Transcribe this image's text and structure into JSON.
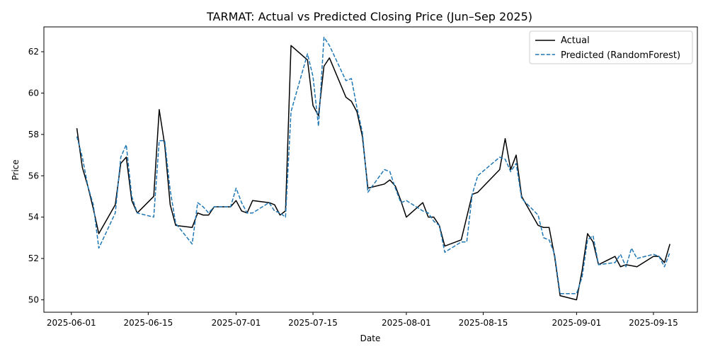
{
  "chart_data": {
    "type": "line",
    "title": "TARMAT: Actual vs Predicted Closing Price (Jun–Sep 2025)",
    "xlabel": "Date",
    "ylabel": "Price",
    "ylim": [
      49.4,
      63.2
    ],
    "xlim": [
      "2025-05-27",
      "2025-09-23"
    ],
    "y_ticks": [
      50,
      52,
      54,
      56,
      58,
      60,
      62
    ],
    "x_ticks": [
      "2025-06-01",
      "2025-06-15",
      "2025-07-01",
      "2025-07-15",
      "2025-08-01",
      "2025-08-15",
      "2025-09-01",
      "2025-09-15"
    ],
    "grid": false,
    "legend_position": "top-right",
    "series": [
      {
        "name": "Actual",
        "color": "#000000",
        "style": "solid",
        "points": [
          [
            "2025-06-02",
            58.3
          ],
          [
            "2025-06-03",
            56.4
          ],
          [
            "2025-06-04",
            55.5
          ],
          [
            "2025-06-05",
            54.4
          ],
          [
            "2025-06-06",
            53.2
          ],
          [
            "2025-06-09",
            54.6
          ],
          [
            "2025-06-10",
            56.6
          ],
          [
            "2025-06-11",
            56.9
          ],
          [
            "2025-06-12",
            54.8
          ],
          [
            "2025-06-13",
            54.2
          ],
          [
            "2025-06-16",
            55.0
          ],
          [
            "2025-06-17",
            59.2
          ],
          [
            "2025-06-18",
            57.5
          ],
          [
            "2025-06-19",
            54.6
          ],
          [
            "2025-06-20",
            53.6
          ],
          [
            "2025-06-23",
            53.5
          ],
          [
            "2025-06-24",
            54.2
          ],
          [
            "2025-06-25",
            54.1
          ],
          [
            "2025-06-26",
            54.1
          ],
          [
            "2025-06-27",
            54.5
          ],
          [
            "2025-06-30",
            54.5
          ],
          [
            "2025-07-01",
            54.8
          ],
          [
            "2025-07-02",
            54.3
          ],
          [
            "2025-07-03",
            54.2
          ],
          [
            "2025-07-04",
            54.8
          ],
          [
            "2025-07-07",
            54.7
          ],
          [
            "2025-07-08",
            54.6
          ],
          [
            "2025-07-09",
            54.1
          ],
          [
            "2025-07-10",
            54.3
          ],
          [
            "2025-07-11",
            62.3
          ],
          [
            "2025-07-14",
            61.6
          ],
          [
            "2025-07-15",
            59.4
          ],
          [
            "2025-07-16",
            58.9
          ],
          [
            "2025-07-17",
            61.3
          ],
          [
            "2025-07-18",
            61.7
          ],
          [
            "2025-07-21",
            59.8
          ],
          [
            "2025-07-22",
            59.6
          ],
          [
            "2025-07-23",
            59.1
          ],
          [
            "2025-07-24",
            57.9
          ],
          [
            "2025-07-25",
            55.4
          ],
          [
            "2025-07-28",
            55.6
          ],
          [
            "2025-07-29",
            55.8
          ],
          [
            "2025-07-30",
            55.5
          ],
          [
            "2025-07-31",
            54.8
          ],
          [
            "2025-08-01",
            54.0
          ],
          [
            "2025-08-04",
            54.7
          ],
          [
            "2025-08-05",
            54.0
          ],
          [
            "2025-08-06",
            54.0
          ],
          [
            "2025-08-07",
            53.6
          ],
          [
            "2025-08-08",
            52.6
          ],
          [
            "2025-08-11",
            52.9
          ],
          [
            "2025-08-12",
            54.0
          ],
          [
            "2025-08-13",
            55.1
          ],
          [
            "2025-08-14",
            55.2
          ],
          [
            "2025-08-18",
            56.3
          ],
          [
            "2025-08-19",
            57.8
          ],
          [
            "2025-08-20",
            56.3
          ],
          [
            "2025-08-21",
            57.0
          ],
          [
            "2025-08-22",
            55.0
          ],
          [
            "2025-08-25",
            53.6
          ],
          [
            "2025-08-26",
            53.5
          ],
          [
            "2025-08-27",
            53.5
          ],
          [
            "2025-08-28",
            52.1
          ],
          [
            "2025-08-29",
            50.2
          ],
          [
            "2025-09-01",
            50.0
          ],
          [
            "2025-09-02",
            51.4
          ],
          [
            "2025-09-03",
            53.2
          ],
          [
            "2025-09-04",
            52.8
          ],
          [
            "2025-09-05",
            51.7
          ],
          [
            "2025-09-08",
            52.1
          ],
          [
            "2025-09-09",
            51.6
          ],
          [
            "2025-09-10",
            51.7
          ],
          [
            "2025-09-12",
            51.6
          ],
          [
            "2025-09-15",
            52.1
          ],
          [
            "2025-09-16",
            52.1
          ],
          [
            "2025-09-17",
            51.8
          ],
          [
            "2025-09-18",
            52.7
          ]
        ]
      },
      {
        "name": "Predicted (RandomForest)",
        "color": "#1f77b4",
        "style": "dashed",
        "points": [
          [
            "2025-06-02",
            57.9
          ],
          [
            "2025-06-03",
            56.9
          ],
          [
            "2025-06-04",
            55.5
          ],
          [
            "2025-06-05",
            54.6
          ],
          [
            "2025-06-06",
            52.5
          ],
          [
            "2025-06-09",
            54.2
          ],
          [
            "2025-06-10",
            56.9
          ],
          [
            "2025-06-11",
            57.5
          ],
          [
            "2025-06-12",
            55.0
          ],
          [
            "2025-06-13",
            54.2
          ],
          [
            "2025-06-16",
            54.0
          ],
          [
            "2025-06-17",
            57.7
          ],
          [
            "2025-06-18",
            57.7
          ],
          [
            "2025-06-19",
            55.3
          ],
          [
            "2025-06-20",
            53.7
          ],
          [
            "2025-06-23",
            52.7
          ],
          [
            "2025-06-24",
            54.7
          ],
          [
            "2025-06-25",
            54.5
          ],
          [
            "2025-06-26",
            54.2
          ],
          [
            "2025-06-27",
            54.5
          ],
          [
            "2025-06-30",
            54.5
          ],
          [
            "2025-07-01",
            55.4
          ],
          [
            "2025-07-02",
            54.7
          ],
          [
            "2025-07-03",
            54.2
          ],
          [
            "2025-07-04",
            54.2
          ],
          [
            "2025-07-07",
            54.7
          ],
          [
            "2025-07-08",
            54.3
          ],
          [
            "2025-07-09",
            54.2
          ],
          [
            "2025-07-10",
            54.0
          ],
          [
            "2025-07-11",
            59.1
          ],
          [
            "2025-07-14",
            61.9
          ],
          [
            "2025-07-15",
            60.8
          ],
          [
            "2025-07-16",
            58.4
          ],
          [
            "2025-07-17",
            62.7
          ],
          [
            "2025-07-18",
            62.3
          ],
          [
            "2025-07-21",
            60.6
          ],
          [
            "2025-07-22",
            60.7
          ],
          [
            "2025-07-23",
            59.3
          ],
          [
            "2025-07-24",
            58.1
          ],
          [
            "2025-07-25",
            55.2
          ],
          [
            "2025-07-28",
            56.3
          ],
          [
            "2025-07-29",
            56.2
          ],
          [
            "2025-07-30",
            55.4
          ],
          [
            "2025-07-31",
            54.7
          ],
          [
            "2025-08-01",
            54.8
          ],
          [
            "2025-08-04",
            54.3
          ],
          [
            "2025-08-05",
            54.2
          ],
          [
            "2025-08-06",
            53.8
          ],
          [
            "2025-08-07",
            53.6
          ],
          [
            "2025-08-08",
            52.3
          ],
          [
            "2025-08-11",
            52.8
          ],
          [
            "2025-08-12",
            52.8
          ],
          [
            "2025-08-13",
            55.1
          ],
          [
            "2025-08-14",
            56.0
          ],
          [
            "2025-08-18",
            56.9
          ],
          [
            "2025-08-19",
            56.8
          ],
          [
            "2025-08-20",
            56.2
          ],
          [
            "2025-08-21",
            56.6
          ],
          [
            "2025-08-22",
            54.9
          ],
          [
            "2025-08-25",
            54.1
          ],
          [
            "2025-08-26",
            53.0
          ],
          [
            "2025-08-27",
            52.9
          ],
          [
            "2025-08-28",
            52.2
          ],
          [
            "2025-08-29",
            50.3
          ],
          [
            "2025-09-01",
            50.3
          ],
          [
            "2025-09-02",
            51.1
          ],
          [
            "2025-09-03",
            52.9
          ],
          [
            "2025-09-04",
            53.1
          ],
          [
            "2025-09-05",
            51.7
          ],
          [
            "2025-09-08",
            51.8
          ],
          [
            "2025-09-09",
            52.2
          ],
          [
            "2025-09-10",
            51.6
          ],
          [
            "2025-09-11",
            52.5
          ],
          [
            "2025-09-12",
            52.0
          ],
          [
            "2025-09-15",
            52.2
          ],
          [
            "2025-09-16",
            52.1
          ],
          [
            "2025-09-17",
            51.6
          ],
          [
            "2025-09-18",
            52.3
          ]
        ]
      }
    ]
  }
}
